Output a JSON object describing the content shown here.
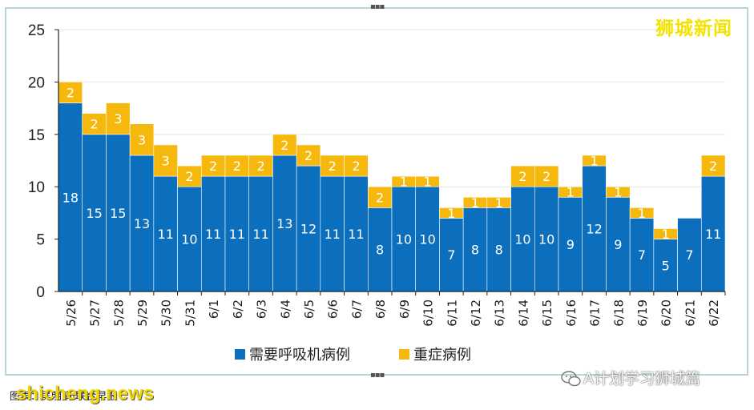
{
  "brand": "狮城新闻",
  "watermark": "A计划学习狮城篇",
  "source": "图表：吴明娟/联合早报",
  "site": "shicheng.news",
  "colors": {
    "ventilator": "#0b6fbd",
    "severe": "#f7b80d",
    "axis": "#222222",
    "grid": "#e6e6e6"
  },
  "chart_data": {
    "type": "bar",
    "stacked": true,
    "title": "",
    "xlabel": "",
    "ylabel": "",
    "ylim": [
      0,
      25
    ],
    "yticks": [
      0,
      5,
      10,
      15,
      20,
      25
    ],
    "legend_position": "bottom",
    "categories": [
      "5/26",
      "5/27",
      "5/28",
      "5/29",
      "5/30",
      "5/31",
      "6/1",
      "6/2",
      "6/3",
      "6/4",
      "6/5",
      "6/6",
      "6/7",
      "6/8",
      "6/9",
      "6/10",
      "6/11",
      "6/12",
      "6/13",
      "6/14",
      "6/15",
      "6/16",
      "6/17",
      "6/18",
      "6/19",
      "6/20",
      "6/21",
      "6/22"
    ],
    "series": [
      {
        "name": "需要呼吸机病例",
        "color": "#0b6fbd",
        "values": [
          18,
          15,
          15,
          13,
          11,
          10,
          11,
          11,
          11,
          13,
          12,
          11,
          11,
          8,
          10,
          10,
          7,
          8,
          8,
          10,
          10,
          9,
          12,
          9,
          7,
          5,
          7,
          11
        ]
      },
      {
        "name": "重症病例",
        "color": "#f7b80d",
        "values": [
          2,
          2,
          3,
          3,
          3,
          2,
          2,
          2,
          2,
          2,
          2,
          2,
          2,
          2,
          1,
          1,
          1,
          1,
          1,
          2,
          2,
          1,
          1,
          1,
          1,
          1,
          0,
          2
        ]
      }
    ]
  }
}
